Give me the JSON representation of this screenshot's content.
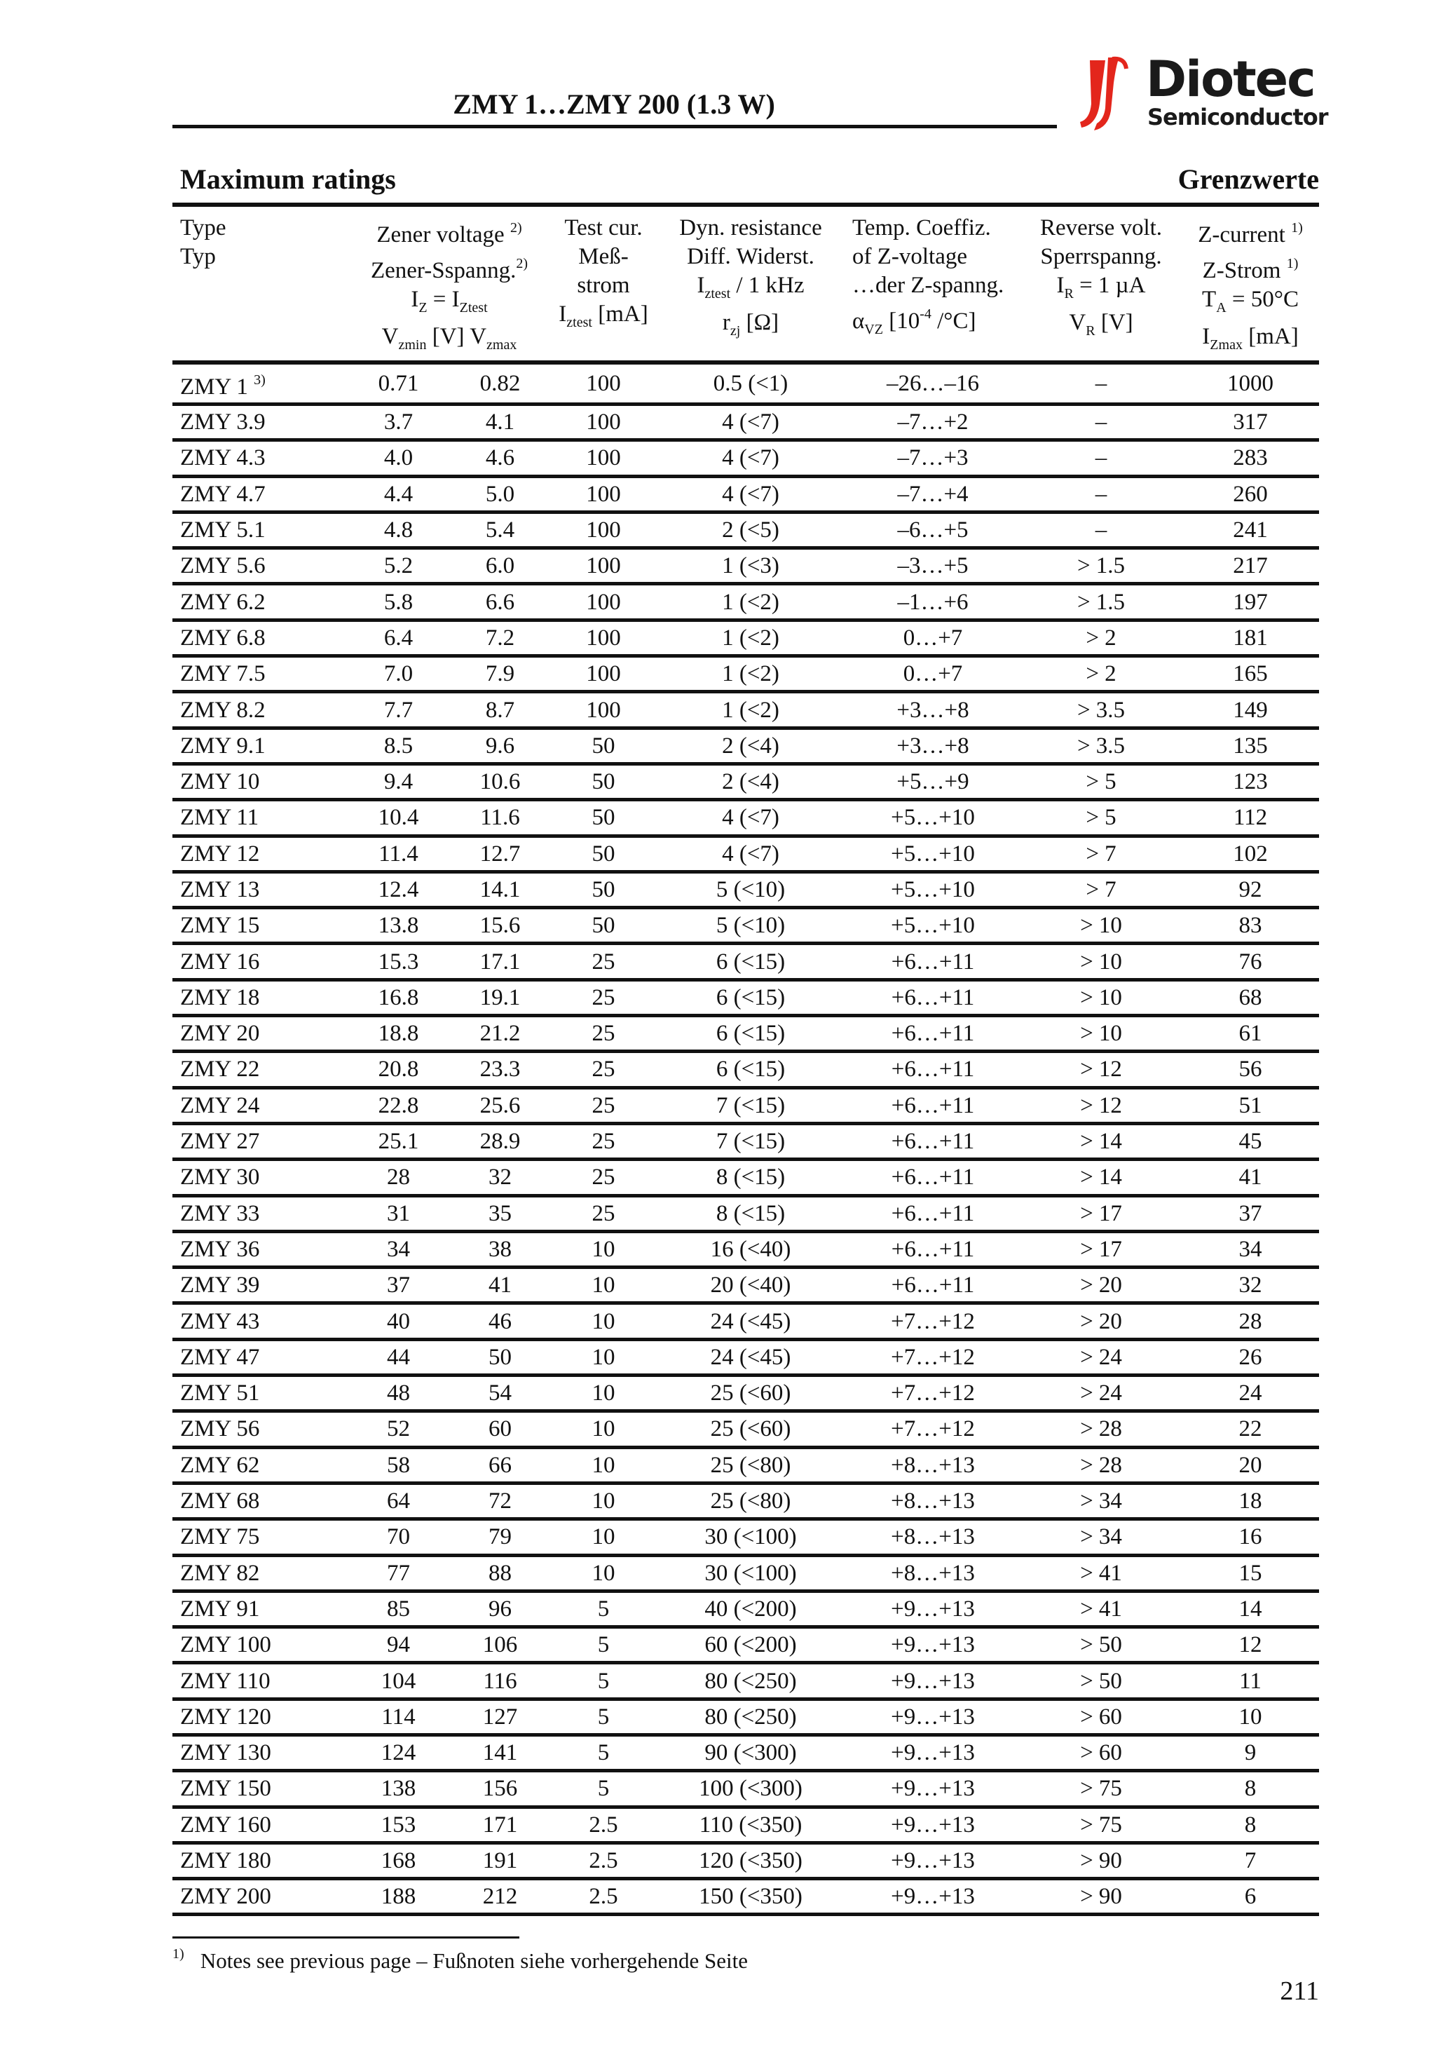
{
  "header": {
    "title": "ZMY 1…ZMY 200 (1.3 W)",
    "logo_brand": "Diotec",
    "logo_sub": "Semiconductor",
    "logo_color": "#e3261c"
  },
  "section": {
    "left": "Maximum ratings",
    "right": "Grenzwerte"
  },
  "columns": {
    "type": [
      "Type",
      "Typ"
    ],
    "zener": [
      "Zener voltage",
      "Zener-Sspanng."
    ],
    "zener_note": "2)",
    "zener_cond": "I",
    "zener_cond_sub": "Z",
    "zener_cond_eq": " = I",
    "zener_cond_sub2": "Ztest",
    "vzmin": "V",
    "vzmin_sub": "zmin",
    "vunit": " [V] ",
    "vzmax": "V",
    "vzmax_sub": "zmax",
    "test": [
      "Test cur.",
      "Meß-",
      "strom"
    ],
    "test_sym": "I",
    "test_sub": "ztest",
    "test_unit": " [mA]",
    "dyn": [
      "Dyn. resistance",
      "Diff. Widerst."
    ],
    "dyn_cond": "I",
    "dyn_cond_sub": "ztest",
    "dyn_cond_rest": " / 1 kHz",
    "dyn_sym": "r",
    "dyn_sub": "zj",
    "dyn_unit": " [Ω]",
    "temp": [
      "Temp. Coeffiz.",
      "of Z-voltage",
      "…der Z-spanng."
    ],
    "temp_sym": "α",
    "temp_sub": "VZ",
    "temp_unit": " [10",
    "temp_exp": "-4",
    "temp_unit2": " /°C]",
    "rev": [
      "Reverse volt.",
      "Sperrspanng."
    ],
    "rev_cond": "I",
    "rev_cond_sub": "R",
    "rev_cond_rest": " = 1 µA",
    "rev_sym": "V",
    "rev_sub": "R",
    "rev_unit": " [V]",
    "zcur": [
      "Z-current",
      "Z-Strom"
    ],
    "zcur_note": "1)",
    "zcur_cond": "T",
    "zcur_cond_sub": "A",
    "zcur_cond_rest": " = 50°C",
    "zcur_sym": "I",
    "zcur_sub": "Zmax",
    "zcur_unit": " [mA]"
  },
  "rows": [
    [
      "ZMY 1",
      "0.71",
      "0.82",
      "100",
      "0.5 (<1)",
      "–26…–16",
      "–",
      "1000",
      "3)"
    ],
    [
      "ZMY 3.9",
      "3.7",
      "4.1",
      "100",
      "4 (<7)",
      "–7…+2",
      "–",
      "317"
    ],
    [
      "ZMY 4.3",
      "4.0",
      "4.6",
      "100",
      "4 (<7)",
      "–7…+3",
      "–",
      "283"
    ],
    [
      "ZMY 4.7",
      "4.4",
      "5.0",
      "100",
      "4 (<7)",
      "–7…+4",
      "–",
      "260"
    ],
    [
      "ZMY 5.1",
      "4.8",
      "5.4",
      "100",
      "2 (<5)",
      "–6…+5",
      "–",
      "241"
    ],
    [
      "ZMY 5.6",
      "5.2",
      "6.0",
      "100",
      "1 (<3)",
      "–3…+5",
      "> 1.5",
      "217"
    ],
    [
      "ZMY 6.2",
      "5.8",
      "6.6",
      "100",
      "1 (<2)",
      "–1…+6",
      "> 1.5",
      "197"
    ],
    [
      "ZMY 6.8",
      "6.4",
      "7.2",
      "100",
      "1 (<2)",
      "0…+7",
      "> 2",
      "181"
    ],
    [
      "ZMY 7.5",
      "7.0",
      "7.9",
      "100",
      "1 (<2)",
      "0…+7",
      "> 2",
      "165"
    ],
    [
      "ZMY 8.2",
      "7.7",
      "8.7",
      "100",
      "1 (<2)",
      "+3…+8",
      "> 3.5",
      "149"
    ],
    [
      "ZMY 9.1",
      "8.5",
      "9.6",
      "50",
      "2 (<4)",
      "+3…+8",
      "> 3.5",
      "135"
    ],
    [
      "ZMY 10",
      "9.4",
      "10.6",
      "50",
      "2 (<4)",
      "+5…+9",
      "> 5",
      "123"
    ],
    [
      "ZMY 11",
      "10.4",
      "11.6",
      "50",
      "4 (<7)",
      "+5…+10",
      "> 5",
      "112"
    ],
    [
      "ZMY 12",
      "11.4",
      "12.7",
      "50",
      "4 (<7)",
      "+5…+10",
      "> 7",
      "102"
    ],
    [
      "ZMY 13",
      "12.4",
      "14.1",
      "50",
      "5 (<10)",
      "+5…+10",
      "> 7",
      "92"
    ],
    [
      "ZMY 15",
      "13.8",
      "15.6",
      "50",
      "5 (<10)",
      "+5…+10",
      "> 10",
      "83"
    ],
    [
      "ZMY 16",
      "15.3",
      "17.1",
      "25",
      "6 (<15)",
      "+6…+11",
      "> 10",
      "76"
    ],
    [
      "ZMY 18",
      "16.8",
      "19.1",
      "25",
      "6 (<15)",
      "+6…+11",
      "> 10",
      "68"
    ],
    [
      "ZMY 20",
      "18.8",
      "21.2",
      "25",
      "6 (<15)",
      "+6…+11",
      "> 10",
      "61"
    ],
    [
      "ZMY 22",
      "20.8",
      "23.3",
      "25",
      "6 (<15)",
      "+6…+11",
      "> 12",
      "56"
    ],
    [
      "ZMY 24",
      "22.8",
      "25.6",
      "25",
      "7 (<15)",
      "+6…+11",
      "> 12",
      "51"
    ],
    [
      "ZMY 27",
      "25.1",
      "28.9",
      "25",
      "7 (<15)",
      "+6…+11",
      "> 14",
      "45"
    ],
    [
      "ZMY 30",
      "28",
      "32",
      "25",
      "8 (<15)",
      "+6…+11",
      "> 14",
      "41"
    ],
    [
      "ZMY 33",
      "31",
      "35",
      "25",
      "8 (<15)",
      "+6…+11",
      "> 17",
      "37"
    ],
    [
      "ZMY 36",
      "34",
      "38",
      "10",
      "16 (<40)",
      "+6…+11",
      "> 17",
      "34"
    ],
    [
      "ZMY 39",
      "37",
      "41",
      "10",
      "20 (<40)",
      "+6…+11",
      "> 20",
      "32"
    ],
    [
      "ZMY 43",
      "40",
      "46",
      "10",
      "24 (<45)",
      "+7…+12",
      "> 20",
      "28"
    ],
    [
      "ZMY 47",
      "44",
      "50",
      "10",
      "24 (<45)",
      "+7…+12",
      "> 24",
      "26"
    ],
    [
      "ZMY 51",
      "48",
      "54",
      "10",
      "25 (<60)",
      "+7…+12",
      "> 24",
      "24"
    ],
    [
      "ZMY 56",
      "52",
      "60",
      "10",
      "25 (<60)",
      "+7…+12",
      "> 28",
      "22"
    ],
    [
      "ZMY 62",
      "58",
      "66",
      "10",
      "25 (<80)",
      "+8…+13",
      "> 28",
      "20"
    ],
    [
      "ZMY 68",
      "64",
      "72",
      "10",
      "25 (<80)",
      "+8…+13",
      "> 34",
      "18"
    ],
    [
      "ZMY 75",
      "70",
      "79",
      "10",
      "30 (<100)",
      "+8…+13",
      "> 34",
      "16"
    ],
    [
      "ZMY 82",
      "77",
      "88",
      "10",
      "30 (<100)",
      "+8…+13",
      "> 41",
      "15"
    ],
    [
      "ZMY 91",
      "85",
      "96",
      "5",
      "40 (<200)",
      "+9…+13",
      "> 41",
      "14"
    ],
    [
      "ZMY 100",
      "94",
      "106",
      "5",
      "60 (<200)",
      "+9…+13",
      "> 50",
      "12"
    ],
    [
      "ZMY 110",
      "104",
      "116",
      "5",
      "80 (<250)",
      "+9…+13",
      "> 50",
      "11"
    ],
    [
      "ZMY 120",
      "114",
      "127",
      "5",
      "80 (<250)",
      "+9…+13",
      "> 60",
      "10"
    ],
    [
      "ZMY 130",
      "124",
      "141",
      "5",
      "90 (<300)",
      "+9…+13",
      "> 60",
      "9"
    ],
    [
      "ZMY 150",
      "138",
      "156",
      "5",
      "100 (<300)",
      "+9…+13",
      "> 75",
      "8"
    ],
    [
      "ZMY 160",
      "153",
      "171",
      "2.5",
      "110 (<350)",
      "+9…+13",
      "> 75",
      "8"
    ],
    [
      "ZMY 180",
      "168",
      "191",
      "2.5",
      "120 (<350)",
      "+9…+13",
      "> 90",
      "7"
    ],
    [
      "ZMY 200",
      "188",
      "212",
      "2.5",
      "150 (<350)",
      "+9…+13",
      "> 90",
      "6"
    ]
  ],
  "footnote": {
    "mark": "1)",
    "text": "Notes see previous page – Fußnoten siehe vorhergehende Seite"
  },
  "page_number": "211"
}
